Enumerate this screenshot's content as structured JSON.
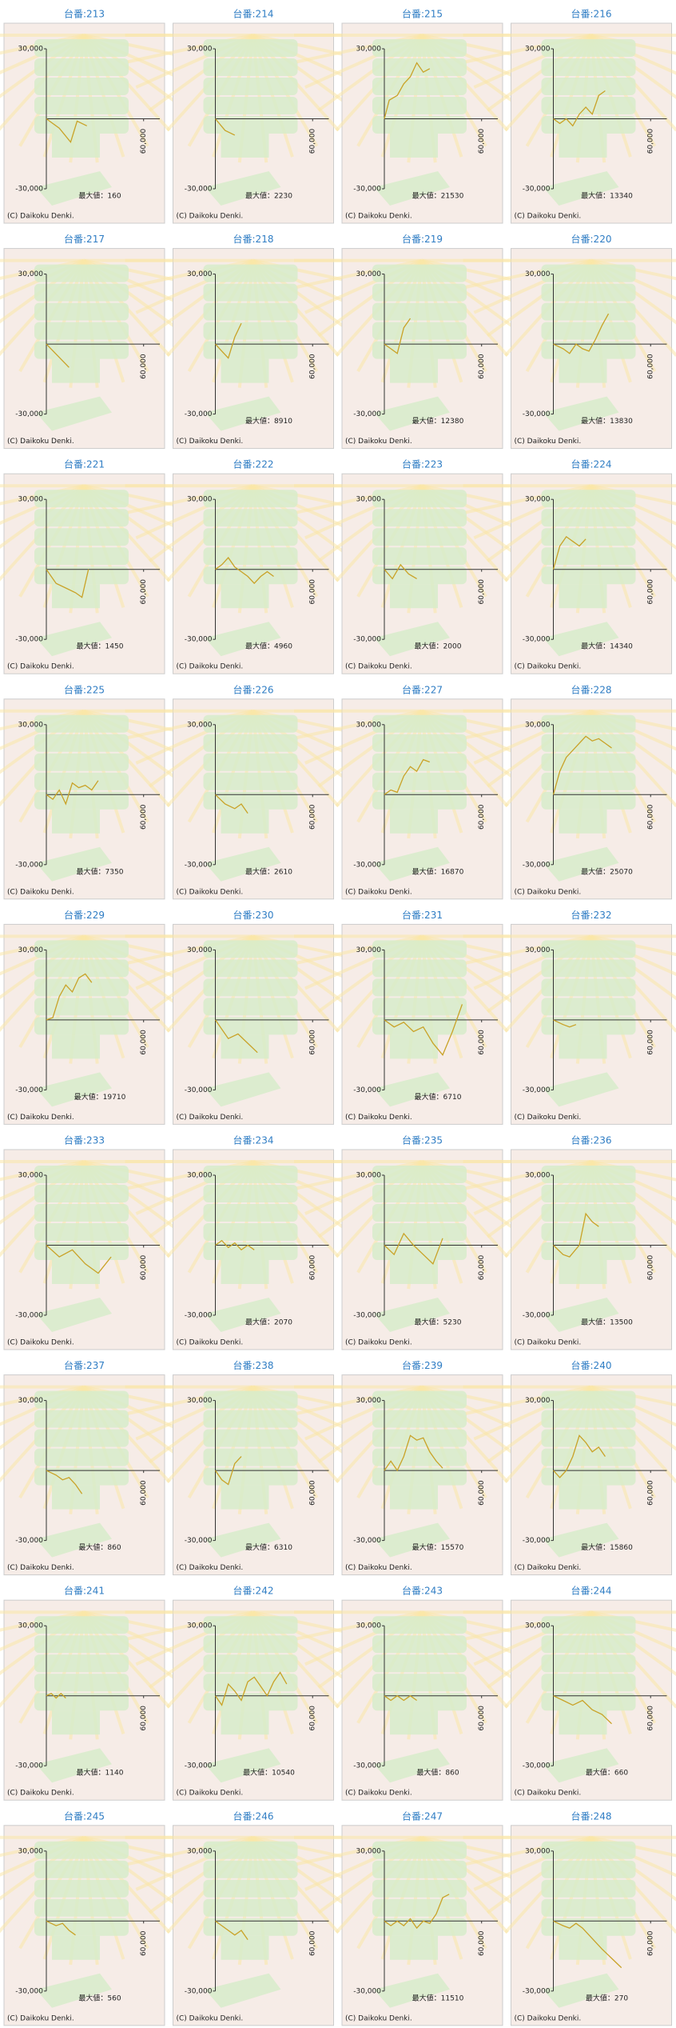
{
  "chart_data": [
    {
      "type": "line",
      "title": "台番:213",
      "annotation": "最大値：160",
      "x": [
        0,
        8000,
        15000,
        19000,
        25000
      ],
      "values": [
        0,
        -4000,
        -10000,
        -1000,
        -3000
      ]
    },
    {
      "type": "line",
      "title": "台番:214",
      "annotation": "最大値：2230",
      "x": [
        0,
        6000,
        12000
      ],
      "values": [
        0,
        -5000,
        -7000
      ]
    },
    {
      "type": "line",
      "title": "台番:215",
      "annotation": "最大値：21530",
      "x": [
        0,
        3000,
        8000,
        12000,
        16000,
        20000,
        24000,
        28000
      ],
      "values": [
        0,
        8000,
        10000,
        15000,
        18000,
        24000,
        20000,
        21500
      ]
    },
    {
      "type": "line",
      "title": "台番:216",
      "annotation": "最大値：13340",
      "x": [
        0,
        4000,
        8000,
        12000,
        16000,
        20000,
        24000,
        28000,
        32000
      ],
      "values": [
        0,
        -2000,
        0,
        -3000,
        2000,
        5000,
        2000,
        10000,
        12000
      ]
    },
    {
      "type": "line",
      "title": "台番:217",
      "x": [
        0,
        14000
      ],
      "values": [
        0,
        -10000
      ]
    },
    {
      "type": "line",
      "title": "台番:218",
      "annotation": "最大値：8910",
      "x": [
        0,
        4000,
        8000,
        12000,
        16000
      ],
      "values": [
        0,
        -3000,
        -6000,
        3000,
        8900
      ]
    },
    {
      "type": "line",
      "title": "台番:219",
      "annotation": "最大値：12380",
      "x": [
        0,
        4000,
        8000,
        12000,
        16000
      ],
      "values": [
        0,
        -2000,
        -4000,
        7000,
        11000
      ]
    },
    {
      "type": "line",
      "title": "台番:220",
      "annotation": "最大値：13830",
      "x": [
        0,
        6000,
        10000,
        14000,
        18000,
        22000,
        26000,
        30000,
        34000
      ],
      "values": [
        0,
        -2000,
        -4000,
        0,
        -2000,
        -3000,
        2000,
        8000,
        13000
      ]
    },
    {
      "type": "line",
      "title": "台番:221",
      "annotation": "最大値：1450",
      "x": [
        0,
        6000,
        12000,
        18000,
        22000,
        26000
      ],
      "values": [
        0,
        -6000,
        -8000,
        -10000,
        -12000,
        0
      ]
    },
    {
      "type": "line",
      "title": "台番:222",
      "annotation": "最大値：4960",
      "x": [
        0,
        4000,
        8000,
        12000,
        16000,
        20000,
        24000,
        28000,
        32000,
        36000
      ],
      "values": [
        0,
        2000,
        5000,
        1000,
        -1000,
        -3000,
        -6000,
        -3000,
        -1000,
        -3000
      ]
    },
    {
      "type": "line",
      "title": "台番:223",
      "annotation": "最大値：2000",
      "x": [
        0,
        5000,
        10000,
        15000,
        20000
      ],
      "values": [
        0,
        -4000,
        2000,
        -2000,
        -4000
      ]
    },
    {
      "type": "line",
      "title": "台番:224",
      "annotation": "最大値：14340",
      "x": [
        0,
        4000,
        8000,
        12000,
        16000,
        20000
      ],
      "values": [
        0,
        10000,
        14000,
        12000,
        10000,
        13000
      ]
    },
    {
      "type": "line",
      "title": "台番:225",
      "annotation": "最大値：7350",
      "x": [
        0,
        4000,
        8000,
        12000,
        16000,
        20000,
        24000,
        28000,
        32000
      ],
      "values": [
        0,
        -2000,
        2000,
        -4000,
        5000,
        3000,
        4000,
        2000,
        6000
      ]
    },
    {
      "type": "line",
      "title": "台番:226",
      "annotation": "最大値：2610",
      "x": [
        0,
        6000,
        12000,
        16000,
        20000
      ],
      "values": [
        0,
        -4000,
        -6000,
        -4000,
        -8000
      ]
    },
    {
      "type": "line",
      "title": "台番:227",
      "annotation": "最大値：16870",
      "x": [
        0,
        4000,
        8000,
        12000,
        16000,
        20000,
        24000,
        28000
      ],
      "values": [
        0,
        2000,
        1000,
        8000,
        12000,
        10000,
        15000,
        14000
      ]
    },
    {
      "type": "line",
      "title": "台番:228",
      "annotation": "最大値：25070",
      "x": [
        0,
        4000,
        8000,
        12000,
        16000,
        20000,
        24000,
        28000,
        32000,
        36000
      ],
      "values": [
        0,
        10000,
        16000,
        19000,
        22000,
        25000,
        23000,
        24000,
        22000,
        20000
      ]
    },
    {
      "type": "line",
      "title": "台番:229",
      "annotation": "最大値：19710",
      "x": [
        0,
        4000,
        8000,
        12000,
        16000,
        20000,
        24000,
        28000
      ],
      "values": [
        0,
        1000,
        10000,
        15000,
        12000,
        18000,
        19700,
        16000
      ]
    },
    {
      "type": "line",
      "title": "台番:230",
      "x": [
        0,
        8000,
        14000,
        20000,
        26000
      ],
      "values": [
        0,
        -8000,
        -6000,
        -10000,
        -14000
      ]
    },
    {
      "type": "line",
      "title": "台番:231",
      "annotation": "最大値：6710",
      "x": [
        0,
        6000,
        12000,
        18000,
        24000,
        30000,
        36000,
        42000,
        48000
      ],
      "values": [
        0,
        -3000,
        -1000,
        -5000,
        -3000,
        -10000,
        -15000,
        -5000,
        6700
      ]
    },
    {
      "type": "line",
      "title": "台番:232",
      "x": [
        0,
        6000,
        10000,
        14000
      ],
      "values": [
        0,
        -2000,
        -3000,
        -2000
      ]
    },
    {
      "type": "line",
      "title": "台番:233",
      "x": [
        0,
        8000,
        16000,
        24000,
        32000,
        40000
      ],
      "values": [
        0,
        -5000,
        -2000,
        -8000,
        -12000,
        -5000
      ]
    },
    {
      "type": "line",
      "title": "台番:234",
      "annotation": "最大値：2070",
      "x": [
        0,
        4000,
        8000,
        12000,
        16000,
        20000,
        24000
      ],
      "values": [
        0,
        2000,
        -1000,
        1000,
        -2000,
        0,
        -2000
      ]
    },
    {
      "type": "line",
      "title": "台番:235",
      "annotation": "最大値：5230",
      "x": [
        0,
        6000,
        12000,
        18000,
        24000,
        30000,
        36000
      ],
      "values": [
        0,
        -4000,
        5000,
        0,
        -4000,
        -8000,
        3000
      ]
    },
    {
      "type": "line",
      "title": "台番:236",
      "annotation": "最大値：13500",
      "x": [
        0,
        6000,
        10000,
        16000,
        20000,
        24000,
        28000
      ],
      "values": [
        0,
        -4000,
        -5000,
        0,
        13500,
        10000,
        8000
      ]
    },
    {
      "type": "line",
      "title": "台番:237",
      "annotation": "最大値：860",
      "x": [
        0,
        6000,
        10000,
        14000,
        18000,
        22000
      ],
      "values": [
        0,
        -2000,
        -4000,
        -3000,
        -6000,
        -10000
      ]
    },
    {
      "type": "line",
      "title": "台番:238",
      "annotation": "最大値：6310",
      "x": [
        0,
        4000,
        8000,
        12000,
        16000
      ],
      "values": [
        0,
        -4000,
        -6000,
        3000,
        6000
      ]
    },
    {
      "type": "line",
      "title": "台番:239",
      "annotation": "最大値：15570",
      "x": [
        0,
        4000,
        8000,
        12000,
        16000,
        20000,
        24000,
        28000,
        32000,
        36000
      ],
      "values": [
        0,
        4000,
        0,
        6000,
        15000,
        13000,
        14000,
        8000,
        4000,
        1000
      ]
    },
    {
      "type": "line",
      "title": "台番:240",
      "annotation": "最大値：15860",
      "x": [
        0,
        4000,
        8000,
        12000,
        16000,
        20000,
        24000,
        28000,
        32000
      ],
      "values": [
        0,
        -3000,
        0,
        6000,
        15000,
        12000,
        8000,
        10000,
        6000
      ]
    },
    {
      "type": "line",
      "title": "台番:241",
      "annotation": "最大値：1140",
      "x": [
        0,
        3000,
        6000,
        9000,
        12000
      ],
      "values": [
        0,
        1000,
        -1000,
        1000,
        -1000
      ]
    },
    {
      "type": "line",
      "title": "台番:242",
      "annotation": "最大値：10540",
      "x": [
        0,
        4000,
        8000,
        12000,
        16000,
        20000,
        24000,
        28000,
        32000,
        36000,
        40000,
        44000
      ],
      "values": [
        0,
        -4000,
        5000,
        2000,
        -2000,
        6000,
        8000,
        4000,
        0,
        6000,
        10000,
        5000
      ]
    },
    {
      "type": "line",
      "title": "台番:243",
      "annotation": "最大値：860",
      "x": [
        0,
        4000,
        8000,
        12000,
        16000,
        20000
      ],
      "values": [
        0,
        -2000,
        0,
        -2000,
        0,
        -2000
      ]
    },
    {
      "type": "line",
      "title": "台番:244",
      "annotation": "最大値：660",
      "x": [
        0,
        6000,
        12000,
        18000,
        24000,
        30000,
        36000
      ],
      "values": [
        0,
        -2000,
        -4000,
        -2000,
        -6000,
        -8000,
        -12000
      ]
    },
    {
      "type": "line",
      "title": "台番:245",
      "annotation": "最大値：560",
      "x": [
        0,
        6000,
        10000,
        14000,
        18000
      ],
      "values": [
        0,
        -2000,
        -1000,
        -4000,
        -6000
      ]
    },
    {
      "type": "line",
      "title": "台番:246",
      "x": [
        0,
        4000,
        8000,
        12000,
        16000,
        20000
      ],
      "values": [
        0,
        -2000,
        -4000,
        -6000,
        -4000,
        -8000
      ]
    },
    {
      "type": "line",
      "title": "台番:247",
      "annotation": "最大値：11510",
      "x": [
        0,
        4000,
        8000,
        12000,
        16000,
        20000,
        24000,
        28000,
        32000,
        36000,
        40000
      ],
      "values": [
        0,
        -2000,
        0,
        -2000,
        1000,
        -3000,
        0,
        -1000,
        3000,
        10000,
        11500
      ]
    },
    {
      "type": "line",
      "title": "台番:248",
      "annotation": "最大値：270",
      "x": [
        0,
        6000,
        10000,
        14000,
        18000,
        30000,
        42000
      ],
      "values": [
        0,
        -2000,
        -3000,
        -1000,
        -3000,
        -12000,
        -20000
      ]
    }
  ],
  "color": "#c9a227",
  "xlim": [
    0,
    70000
  ],
  "ylim": [
    -30000,
    30000
  ],
  "yticks": [
    {
      "value": 30000,
      "label": "30,000"
    },
    {
      "value": -30000,
      "label": "-30,000"
    }
  ],
  "xticks": [
    {
      "value": 60000,
      "label": "60,000"
    }
  ],
  "footer": "(C) Daikoku Denki."
}
